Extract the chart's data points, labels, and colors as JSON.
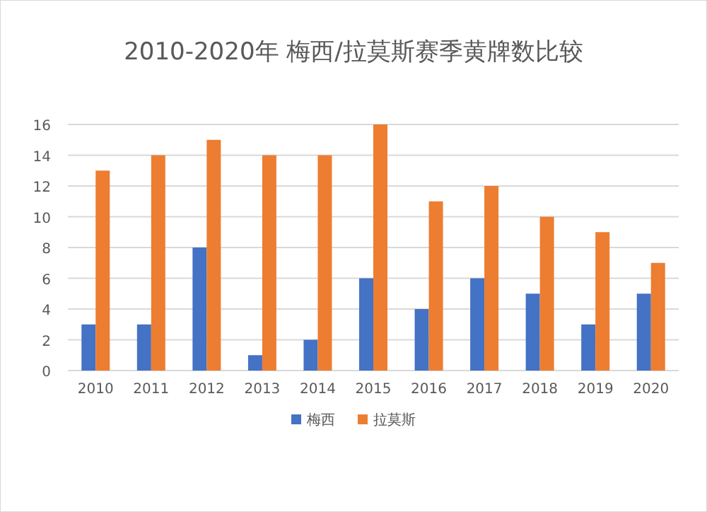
{
  "chart_data": {
    "type": "bar",
    "title": "2010-2020年 梅西/拉莫斯赛季黄牌数比较",
    "categories": [
      "2010",
      "2011",
      "2012",
      "2013",
      "2014",
      "2015",
      "2016",
      "2017",
      "2018",
      "2019",
      "2020"
    ],
    "series": [
      {
        "name": "梅西",
        "color": "#4472c4",
        "values": [
          3,
          3,
          8,
          1,
          2,
          6,
          4,
          6,
          5,
          3,
          5
        ]
      },
      {
        "name": "拉莫斯",
        "color": "#ed7d31",
        "values": [
          13,
          14,
          15,
          14,
          14,
          16,
          11,
          12,
          10,
          9,
          7
        ]
      }
    ],
    "ylim": [
      0,
      16
    ],
    "yticks": [
      0,
      2,
      4,
      6,
      8,
      10,
      12,
      14,
      16
    ],
    "grid": "y",
    "legend": "bottom"
  }
}
